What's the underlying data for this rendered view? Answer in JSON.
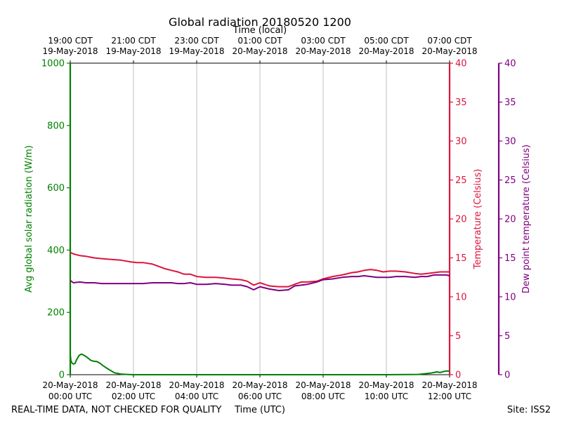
{
  "chart_data": {
    "type": "line",
    "title": "Global radiation 20180520 1200",
    "top_axis_label": "Time (local)",
    "xlabel": "Time (UTC)",
    "footer_left": "REAL-TIME DATA, NOT CHECKED FOR QUALITY",
    "footer_right": "Site: ISS2",
    "x_range_hours_utc": [
      0,
      12
    ],
    "x_ticks_bottom": [
      {
        "hour": 0,
        "line1": "20-May-2018",
        "line2": "00:00 UTC"
      },
      {
        "hour": 2,
        "line1": "20-May-2018",
        "line2": "02:00 UTC"
      },
      {
        "hour": 4,
        "line1": "20-May-2018",
        "line2": "04:00 UTC"
      },
      {
        "hour": 6,
        "line1": "20-May-2018",
        "line2": "06:00 UTC"
      },
      {
        "hour": 8,
        "line1": "20-May-2018",
        "line2": "08:00 UTC"
      },
      {
        "hour": 10,
        "line1": "20-May-2018",
        "line2": "10:00 UTC"
      },
      {
        "hour": 12,
        "line1": "20-May-2018",
        "line2": "12:00 UTC"
      }
    ],
    "x_ticks_top": [
      {
        "hour": 0,
        "line1": "19:00 CDT",
        "line2": "19-May-2018"
      },
      {
        "hour": 2,
        "line1": "21:00 CDT",
        "line2": "19-May-2018"
      },
      {
        "hour": 4,
        "line1": "23:00 CDT",
        "line2": "19-May-2018"
      },
      {
        "hour": 6,
        "line1": "01:00 CDT",
        "line2": "20-May-2018"
      },
      {
        "hour": 8,
        "line1": "03:00 CDT",
        "line2": "20-May-2018"
      },
      {
        "hour": 10,
        "line1": "05:00 CDT",
        "line2": "20-May-2018"
      },
      {
        "hour": 12,
        "line1": "07:00 CDT",
        "line2": "20-May-2018"
      }
    ],
    "axes": [
      {
        "id": "radiation",
        "label": "Avg global solar radiation (W/m)",
        "side": "left",
        "color": "#008000",
        "ylim": [
          0,
          1000
        ],
        "ticks": [
          {
            "v": 0,
            "t": "0"
          },
          {
            "v": 200,
            "t": "200"
          },
          {
            "v": 400,
            "t": "400"
          },
          {
            "v": 600,
            "t": "600"
          },
          {
            "v": 800,
            "t": "800"
          },
          {
            "v": 1000,
            "t": "1000"
          }
        ]
      },
      {
        "id": "temperature",
        "label": "Temperature (Celsius)",
        "side": "right",
        "color": "#dc143c",
        "ylim": [
          0,
          40
        ],
        "ticks": [
          {
            "v": 0,
            "t": "0"
          },
          {
            "v": 5,
            "t": "5"
          },
          {
            "v": 10,
            "t": "10"
          },
          {
            "v": 15,
            "t": "15"
          },
          {
            "v": 20,
            "t": "20"
          },
          {
            "v": 25,
            "t": "25"
          },
          {
            "v": 30,
            "t": "30"
          },
          {
            "v": 35,
            "t": "35"
          },
          {
            "v": 40,
            "t": "40"
          }
        ]
      },
      {
        "id": "dewpoint",
        "label": "Dew point temperature (Celsius)",
        "side": "right-outer",
        "color": "#800080",
        "ylim": [
          0,
          40
        ],
        "ticks": [
          {
            "v": 0,
            "t": "0"
          },
          {
            "v": 5,
            "t": "5"
          },
          {
            "v": 10,
            "t": "10"
          },
          {
            "v": 15,
            "t": "15"
          },
          {
            "v": 20,
            "t": "20"
          },
          {
            "v": 25,
            "t": "25"
          },
          {
            "v": 30,
            "t": "30"
          },
          {
            "v": 35,
            "t": "35"
          },
          {
            "v": 40,
            "t": "40"
          }
        ]
      }
    ],
    "series": [
      {
        "name": "Avg global solar radiation",
        "axis": "radiation",
        "color": "#008000",
        "x": [
          0,
          0.02,
          0.05,
          0.1,
          0.15,
          0.2,
          0.28,
          0.35,
          0.42,
          0.5,
          0.58,
          0.65,
          0.75,
          0.85,
          0.95,
          1.05,
          1.2,
          1.4,
          1.6,
          1.8,
          2.0,
          4.0,
          6.0,
          8.0,
          10.0,
          11.0,
          11.2,
          11.4,
          11.5,
          11.6,
          11.7,
          11.8,
          11.9,
          12.0
        ],
        "values": [
          65,
          45,
          38,
          34,
          36,
          48,
          62,
          66,
          63,
          58,
          52,
          46,
          43,
          42,
          36,
          28,
          18,
          6,
          2,
          1,
          0,
          0,
          0,
          0,
          0,
          1,
          3,
          5,
          7,
          9,
          7,
          10,
          12,
          12
        ]
      },
      {
        "name": "Temperature",
        "axis": "temperature",
        "color": "#dc143c",
        "x": [
          0,
          0.1,
          0.3,
          0.5,
          0.75,
          1.0,
          1.3,
          1.6,
          1.9,
          2.1,
          2.3,
          2.6,
          2.8,
          3.0,
          3.2,
          3.4,
          3.6,
          3.8,
          4.0,
          4.3,
          4.6,
          4.9,
          5.1,
          5.4,
          5.6,
          5.8,
          6.0,
          6.3,
          6.6,
          6.9,
          7.1,
          7.3,
          7.5,
          7.8,
          8.0,
          8.3,
          8.6,
          8.9,
          9.1,
          9.3,
          9.5,
          9.7,
          9.9,
          10.1,
          10.3,
          10.6,
          10.9,
          11.1,
          11.3,
          11.5,
          11.7,
          11.9,
          12.0
        ],
        "values": [
          15.7,
          15.5,
          15.3,
          15.2,
          15.0,
          14.9,
          14.8,
          14.7,
          14.5,
          14.4,
          14.4,
          14.2,
          13.9,
          13.6,
          13.4,
          13.2,
          12.9,
          12.9,
          12.6,
          12.5,
          12.5,
          12.4,
          12.3,
          12.2,
          12.0,
          11.5,
          11.8,
          11.4,
          11.3,
          11.3,
          11.6,
          11.9,
          11.9,
          12.0,
          12.3,
          12.6,
          12.8,
          13.1,
          13.2,
          13.4,
          13.5,
          13.4,
          13.2,
          13.3,
          13.3,
          13.2,
          13.0,
          12.9,
          13.0,
          13.1,
          13.2,
          13.2,
          13.2
        ]
      },
      {
        "name": "Dew point temperature",
        "axis": "dewpoint",
        "color": "#800080",
        "x": [
          0,
          0.1,
          0.3,
          0.5,
          0.75,
          1.0,
          1.3,
          1.6,
          1.9,
          2.1,
          2.3,
          2.6,
          2.8,
          3.0,
          3.2,
          3.4,
          3.6,
          3.8,
          4.0,
          4.3,
          4.6,
          4.9,
          5.1,
          5.4,
          5.6,
          5.8,
          6.0,
          6.3,
          6.6,
          6.9,
          7.1,
          7.3,
          7.5,
          7.8,
          8.0,
          8.3,
          8.6,
          8.9,
          9.1,
          9.3,
          9.5,
          9.7,
          9.9,
          10.1,
          10.3,
          10.6,
          10.9,
          11.1,
          11.3,
          11.5,
          11.7,
          11.9,
          12.0
        ],
        "values": [
          12.1,
          11.8,
          11.9,
          11.8,
          11.8,
          11.7,
          11.7,
          11.7,
          11.7,
          11.7,
          11.7,
          11.8,
          11.8,
          11.8,
          11.8,
          11.7,
          11.7,
          11.8,
          11.6,
          11.6,
          11.7,
          11.6,
          11.5,
          11.5,
          11.3,
          10.9,
          11.3,
          11.0,
          10.8,
          10.9,
          11.4,
          11.5,
          11.6,
          11.9,
          12.2,
          12.3,
          12.5,
          12.6,
          12.6,
          12.7,
          12.6,
          12.5,
          12.5,
          12.5,
          12.6,
          12.6,
          12.5,
          12.6,
          12.6,
          12.8,
          12.8,
          12.8,
          12.7
        ]
      }
    ],
    "grid": "vertical",
    "legend": "none"
  }
}
